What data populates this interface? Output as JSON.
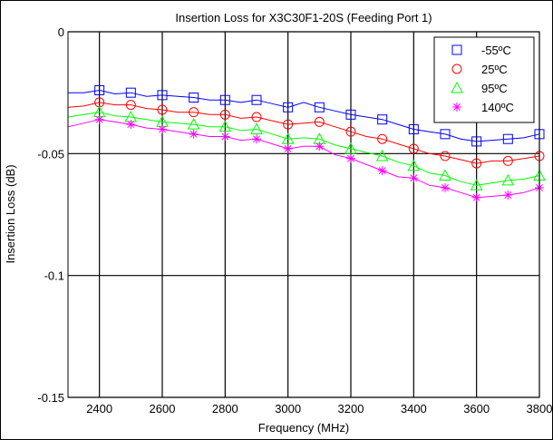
{
  "chart_data": {
    "type": "line",
    "title": "Insertion Loss for X3C30F1-20S (Feeding Port 1)",
    "xlabel": "Frequency (MHz)",
    "ylabel": "Insertion Loss (dB)",
    "xlim": [
      2300,
      3800
    ],
    "ylim": [
      -0.15,
      0
    ],
    "xticks": [
      2400,
      2600,
      2800,
      3000,
      3200,
      3400,
      3600,
      3800
    ],
    "xtick_labels": [
      "2400",
      "2600",
      "2800",
      "3000",
      "3200",
      "3400",
      "3600",
      "3800"
    ],
    "yticks": [
      0,
      -0.05,
      -0.1,
      -0.15
    ],
    "ytick_labels": [
      "0",
      "-0.05",
      "-0.1",
      "-0.15"
    ],
    "grid": true,
    "legend_position": "top-right",
    "series": [
      {
        "name": "-55ºC",
        "color": "#0000ff",
        "marker": "square",
        "x": [
          2300,
          2350,
          2400,
          2450,
          2500,
          2550,
          2600,
          2650,
          2700,
          2750,
          2800,
          2850,
          2900,
          2950,
          3000,
          3050,
          3100,
          3150,
          3200,
          3250,
          3300,
          3350,
          3400,
          3450,
          3500,
          3550,
          3600,
          3650,
          3700,
          3750,
          3800
        ],
        "y": [
          -0.025,
          -0.025,
          -0.024,
          -0.0255,
          -0.025,
          -0.0265,
          -0.026,
          -0.0265,
          -0.027,
          -0.028,
          -0.028,
          -0.029,
          -0.028,
          -0.0295,
          -0.031,
          -0.029,
          -0.031,
          -0.0325,
          -0.034,
          -0.035,
          -0.036,
          -0.038,
          -0.04,
          -0.041,
          -0.042,
          -0.044,
          -0.045,
          -0.0445,
          -0.044,
          -0.0435,
          -0.042
        ],
        "marker_x": [
          2400,
          2500,
          2600,
          2700,
          2800,
          2900,
          3000,
          3100,
          3200,
          3300,
          3400,
          3500,
          3600,
          3700,
          3800
        ],
        "marker_y": [
          -0.024,
          -0.025,
          -0.026,
          -0.027,
          -0.028,
          -0.028,
          -0.031,
          -0.031,
          -0.034,
          -0.036,
          -0.04,
          -0.042,
          -0.045,
          -0.044,
          -0.042
        ]
      },
      {
        "name": "25ºC",
        "color": "#ff0000",
        "marker": "circle",
        "x": [
          2300,
          2350,
          2400,
          2450,
          2500,
          2550,
          2600,
          2650,
          2700,
          2750,
          2800,
          2850,
          2900,
          2950,
          3000,
          3050,
          3100,
          3150,
          3200,
          3250,
          3300,
          3350,
          3400,
          3450,
          3500,
          3550,
          3600,
          3650,
          3700,
          3750,
          3800
        ],
        "y": [
          -0.031,
          -0.0305,
          -0.029,
          -0.03,
          -0.03,
          -0.0315,
          -0.032,
          -0.033,
          -0.033,
          -0.034,
          -0.034,
          -0.0355,
          -0.035,
          -0.0365,
          -0.038,
          -0.0375,
          -0.037,
          -0.039,
          -0.041,
          -0.043,
          -0.044,
          -0.046,
          -0.048,
          -0.05,
          -0.051,
          -0.0525,
          -0.054,
          -0.053,
          -0.053,
          -0.052,
          -0.051
        ],
        "marker_x": [
          2400,
          2500,
          2600,
          2700,
          2800,
          2900,
          3000,
          3100,
          3200,
          3300,
          3400,
          3500,
          3600,
          3700,
          3800
        ],
        "marker_y": [
          -0.029,
          -0.03,
          -0.032,
          -0.033,
          -0.034,
          -0.035,
          -0.038,
          -0.037,
          -0.041,
          -0.044,
          -0.048,
          -0.051,
          -0.054,
          -0.053,
          -0.051
        ]
      },
      {
        "name": "95ºC",
        "color": "#00ff00",
        "marker": "triangle",
        "x": [
          2300,
          2350,
          2400,
          2450,
          2500,
          2550,
          2600,
          2650,
          2700,
          2750,
          2800,
          2850,
          2900,
          2950,
          3000,
          3050,
          3100,
          3150,
          3200,
          3250,
          3300,
          3350,
          3400,
          3450,
          3500,
          3550,
          3600,
          3650,
          3700,
          3750,
          3800
        ],
        "y": [
          -0.035,
          -0.034,
          -0.033,
          -0.0345,
          -0.035,
          -0.036,
          -0.037,
          -0.0375,
          -0.038,
          -0.039,
          -0.039,
          -0.0405,
          -0.04,
          -0.042,
          -0.044,
          -0.0435,
          -0.044,
          -0.0465,
          -0.048,
          -0.0495,
          -0.051,
          -0.0535,
          -0.055,
          -0.058,
          -0.059,
          -0.0615,
          -0.063,
          -0.062,
          -0.061,
          -0.0605,
          -0.059
        ],
        "marker_x": [
          2400,
          2500,
          2600,
          2700,
          2800,
          2900,
          3000,
          3100,
          3200,
          3300,
          3400,
          3500,
          3600,
          3700,
          3800
        ],
        "marker_y": [
          -0.033,
          -0.035,
          -0.037,
          -0.038,
          -0.039,
          -0.04,
          -0.044,
          -0.044,
          -0.048,
          -0.051,
          -0.055,
          -0.059,
          -0.063,
          -0.061,
          -0.059
        ]
      },
      {
        "name": "140ºC",
        "color": "#ff00ff",
        "marker": "asterisk",
        "x": [
          2300,
          2350,
          2400,
          2450,
          2500,
          2550,
          2600,
          2650,
          2700,
          2750,
          2800,
          2850,
          2900,
          2950,
          3000,
          3050,
          3100,
          3150,
          3200,
          3250,
          3300,
          3350,
          3400,
          3450,
          3500,
          3550,
          3600,
          3650,
          3700,
          3750,
          3800
        ],
        "y": [
          -0.039,
          -0.0375,
          -0.036,
          -0.037,
          -0.038,
          -0.0395,
          -0.04,
          -0.041,
          -0.042,
          -0.043,
          -0.043,
          -0.0445,
          -0.044,
          -0.046,
          -0.048,
          -0.047,
          -0.047,
          -0.0505,
          -0.052,
          -0.0545,
          -0.057,
          -0.0595,
          -0.06,
          -0.063,
          -0.064,
          -0.066,
          -0.068,
          -0.0675,
          -0.067,
          -0.066,
          -0.064
        ],
        "marker_x": [
          2400,
          2500,
          2600,
          2700,
          2800,
          2900,
          3000,
          3100,
          3200,
          3300,
          3400,
          3500,
          3600,
          3700,
          3800
        ],
        "marker_y": [
          -0.036,
          -0.038,
          -0.04,
          -0.042,
          -0.043,
          -0.044,
          -0.048,
          -0.047,
          -0.052,
          -0.057,
          -0.06,
          -0.064,
          -0.068,
          -0.067,
          -0.064
        ]
      }
    ]
  }
}
